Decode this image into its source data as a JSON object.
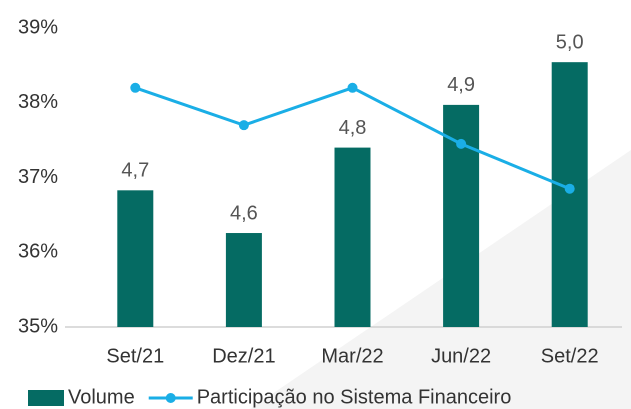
{
  "chart_data": {
    "type": "bar",
    "categories": [
      "Set/21",
      "Dez/21",
      "Mar/22",
      "Jun/22",
      "Set/22"
    ],
    "series": [
      {
        "name": "Volume",
        "type": "bar",
        "axis": "y2",
        "color": "#056b63",
        "values": [
          4.7,
          4.6,
          4.8,
          4.9,
          5.0
        ],
        "value_labels": [
          "4,7",
          "4,6",
          "4,8",
          "4,9",
          "5,0"
        ]
      },
      {
        "name": "Participação no Sistema Financeiro",
        "type": "line",
        "color": "#1aaee6",
        "values": [
          38.2,
          37.7,
          38.2,
          37.45,
          36.85
        ]
      }
    ],
    "ylim": [
      35,
      39
    ],
    "yticks": [
      {
        "value": 35,
        "label": "35%"
      },
      {
        "value": 36,
        "label": "36%"
      },
      {
        "value": 37,
        "label": "37%"
      },
      {
        "value": 38,
        "label": "38%"
      },
      {
        "value": 39,
        "label": "39%"
      }
    ],
    "y2lim": [
      4.38,
      5.08
    ],
    "legend": "bottom"
  }
}
